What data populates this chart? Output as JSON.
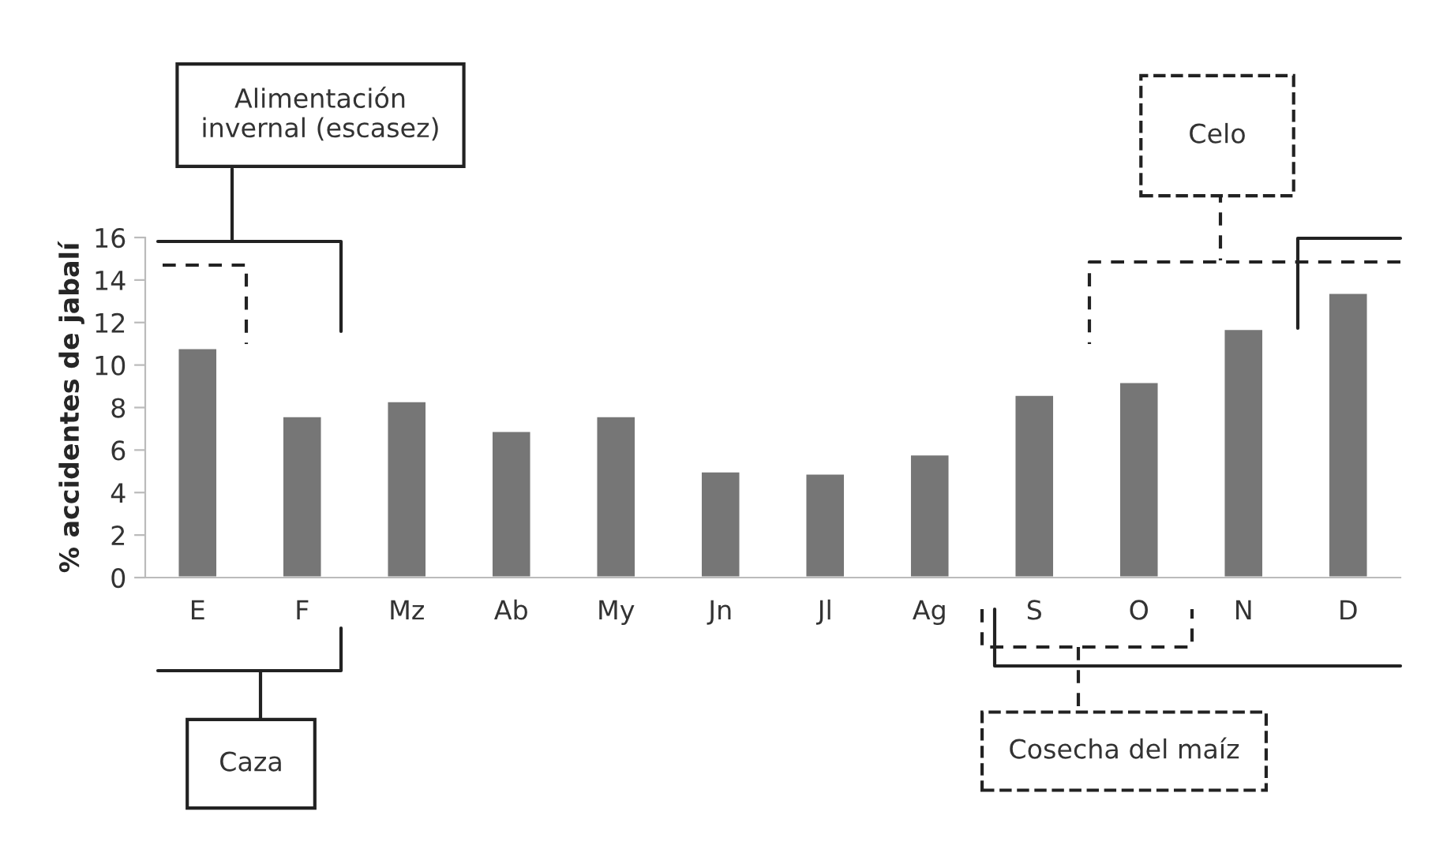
{
  "chart_data": {
    "type": "bar",
    "ylabel": "% accidentes de jabalí",
    "categories": [
      "E",
      "F",
      "Mz",
      "Ab",
      "My",
      "Jn",
      "Jl",
      "Ag",
      "S",
      "O",
      "N",
      "D"
    ],
    "values": [
      10.8,
      7.6,
      8.3,
      6.9,
      7.6,
      5.0,
      4.9,
      5.8,
      8.6,
      9.2,
      11.7,
      13.4
    ],
    "color": "#767676",
    "ylim": [
      0,
      16
    ],
    "yticks": [
      0,
      2,
      4,
      6,
      8,
      10,
      12,
      14,
      16
    ],
    "grid": false,
    "legend": false,
    "annotations": [
      "Alimentación\ninvernal (escasez)",
      "Celo",
      "Caza",
      "Cosecha del maíz"
    ]
  }
}
